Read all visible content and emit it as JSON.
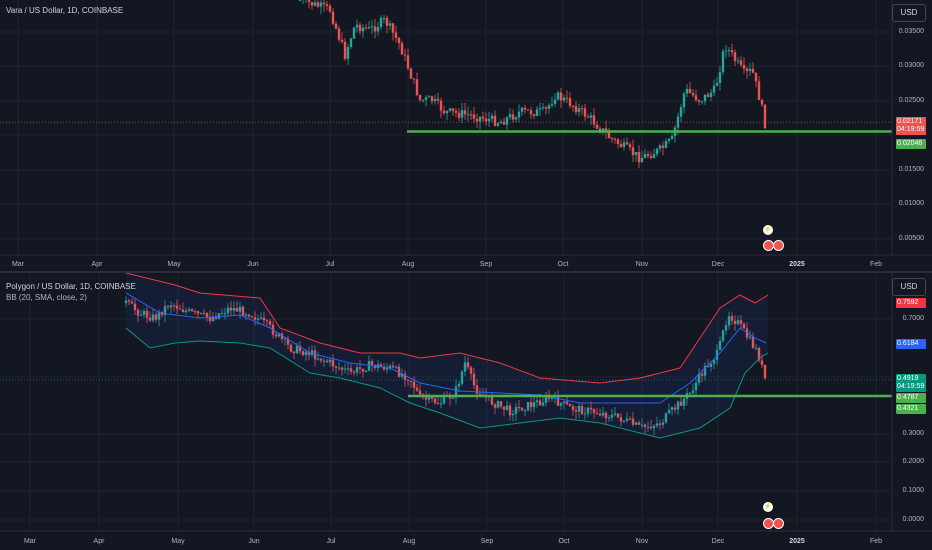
{
  "colors": {
    "bg": "#131722",
    "grid": "#1f2330",
    "up": "#26a69a",
    "down": "#ef5350",
    "support": "#4caf50",
    "bb_upper": "#f23645",
    "bb_lower": "#089981",
    "bb_basis": "#2962ff",
    "axis_text": "#b2b5be"
  },
  "top_pane": {
    "title": "Vara / US Dollar, 1D, COINBASE",
    "currency_button": "USD",
    "y_ticks": [
      "0.03500",
      "0.03000",
      "0.02500",
      "0.01500",
      "0.01000",
      "0.00500"
    ],
    "x_ticks": [
      "Mar",
      "Apr",
      "May",
      "Jun",
      "Jul",
      "Aug",
      "Sep",
      "Oct",
      "Nov",
      "Dec",
      "2025",
      "Feb"
    ],
    "price_tag": {
      "value": "0.02171",
      "countdown": "04:19:59"
    },
    "support_tag": "0.02046",
    "y_range": [
      0.004,
      0.038
    ],
    "support_level": 0.02046,
    "last_price": 0.02171
  },
  "bottom_pane": {
    "title": "Polygon / US Dollar, 1D, COINBASE",
    "indicator": "BB (20, SMA, close, 2)",
    "currency_button": "USD",
    "y_ticks": [
      "0.7000",
      "0.3000",
      "0.2000",
      "0.1000",
      "0.0000"
    ],
    "x_ticks": [
      "Mar",
      "Apr",
      "May",
      "Jun",
      "Jul",
      "Aug",
      "Sep",
      "Oct",
      "Nov",
      "Dec",
      "2025",
      "Feb"
    ],
    "upper_tag": "0.7592",
    "basis_tag": "0.6184",
    "price_tag": {
      "value": "0.4919",
      "countdown": "04:19:59"
    },
    "support_tag": "0.4787",
    "lower_tag": "0.4321",
    "y_range": [
      -0.05,
      0.86
    ],
    "support_level": 0.4787,
    "last_price": 0.4919
  },
  "icons": {
    "lightning": "lightning-icon",
    "flag": "us-flag-icon"
  }
}
